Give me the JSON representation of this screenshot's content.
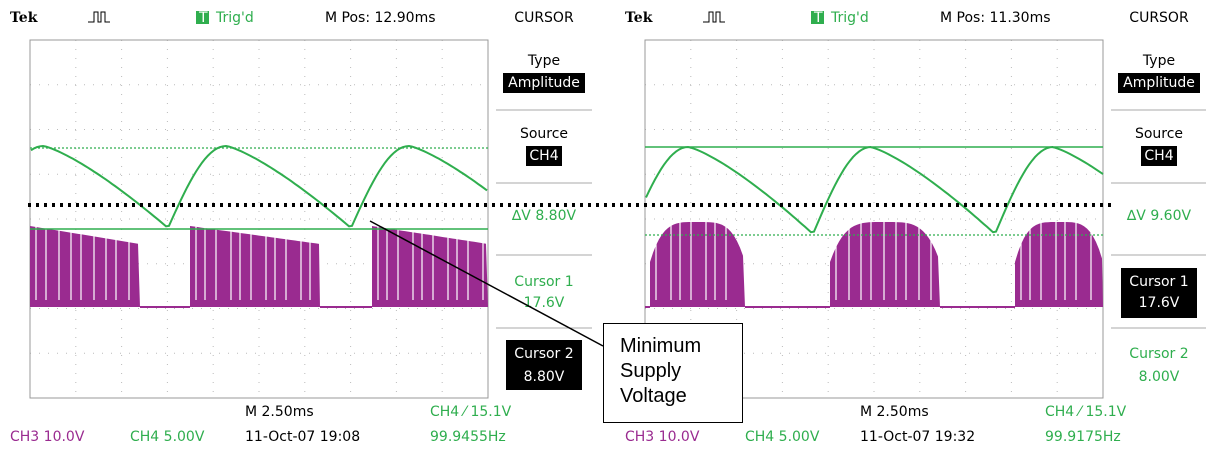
{
  "screens": [
    {
      "header": {
        "brand": "Tek",
        "status": "Trig'd",
        "position": "M Pos: 12.90ms",
        "menu_title": "CURSOR"
      },
      "menu": {
        "type_label": "Type",
        "type_value": "Amplitude",
        "source_label": "Source",
        "source_value": "CH4",
        "delta": "∆V 8.80V",
        "cursor1_label": "Cursor 1",
        "cursor1_value": "17.6V",
        "cursor2_label": "Cursor 2",
        "cursor2_value": "8.80V"
      },
      "footer": {
        "timebase": "M 2.50ms",
        "trigger": "CH4 ⁄ 15.1V",
        "ch3": "CH3 10.0V",
        "ch4": "CH4 5.00V",
        "timestamp": "11-Oct-07 19:08",
        "frequency": "99.9455Hz"
      }
    },
    {
      "header": {
        "brand": "Tek",
        "status": "Trig'd",
        "position": "M Pos: 11.30ms",
        "menu_title": "CURSOR"
      },
      "menu": {
        "type_label": "Type",
        "type_value": "Amplitude",
        "source_label": "Source",
        "source_value": "CH4",
        "delta": "∆V 9.60V",
        "cursor1_label": "Cursor 1",
        "cursor1_value": "17.6V",
        "cursor2_label": "Cursor 2",
        "cursor2_value": "8.00V"
      },
      "footer": {
        "timebase": "M 2.50ms",
        "trigger": "CH4 ⁄ 15.1V",
        "ch3": "CH3 10.0V",
        "ch4": "CH4 5.00V",
        "timestamp": "11-Oct-07 19:32",
        "frequency": "99.9175Hz"
      }
    }
  ],
  "annotation": "Minimum Supply Voltage"
}
